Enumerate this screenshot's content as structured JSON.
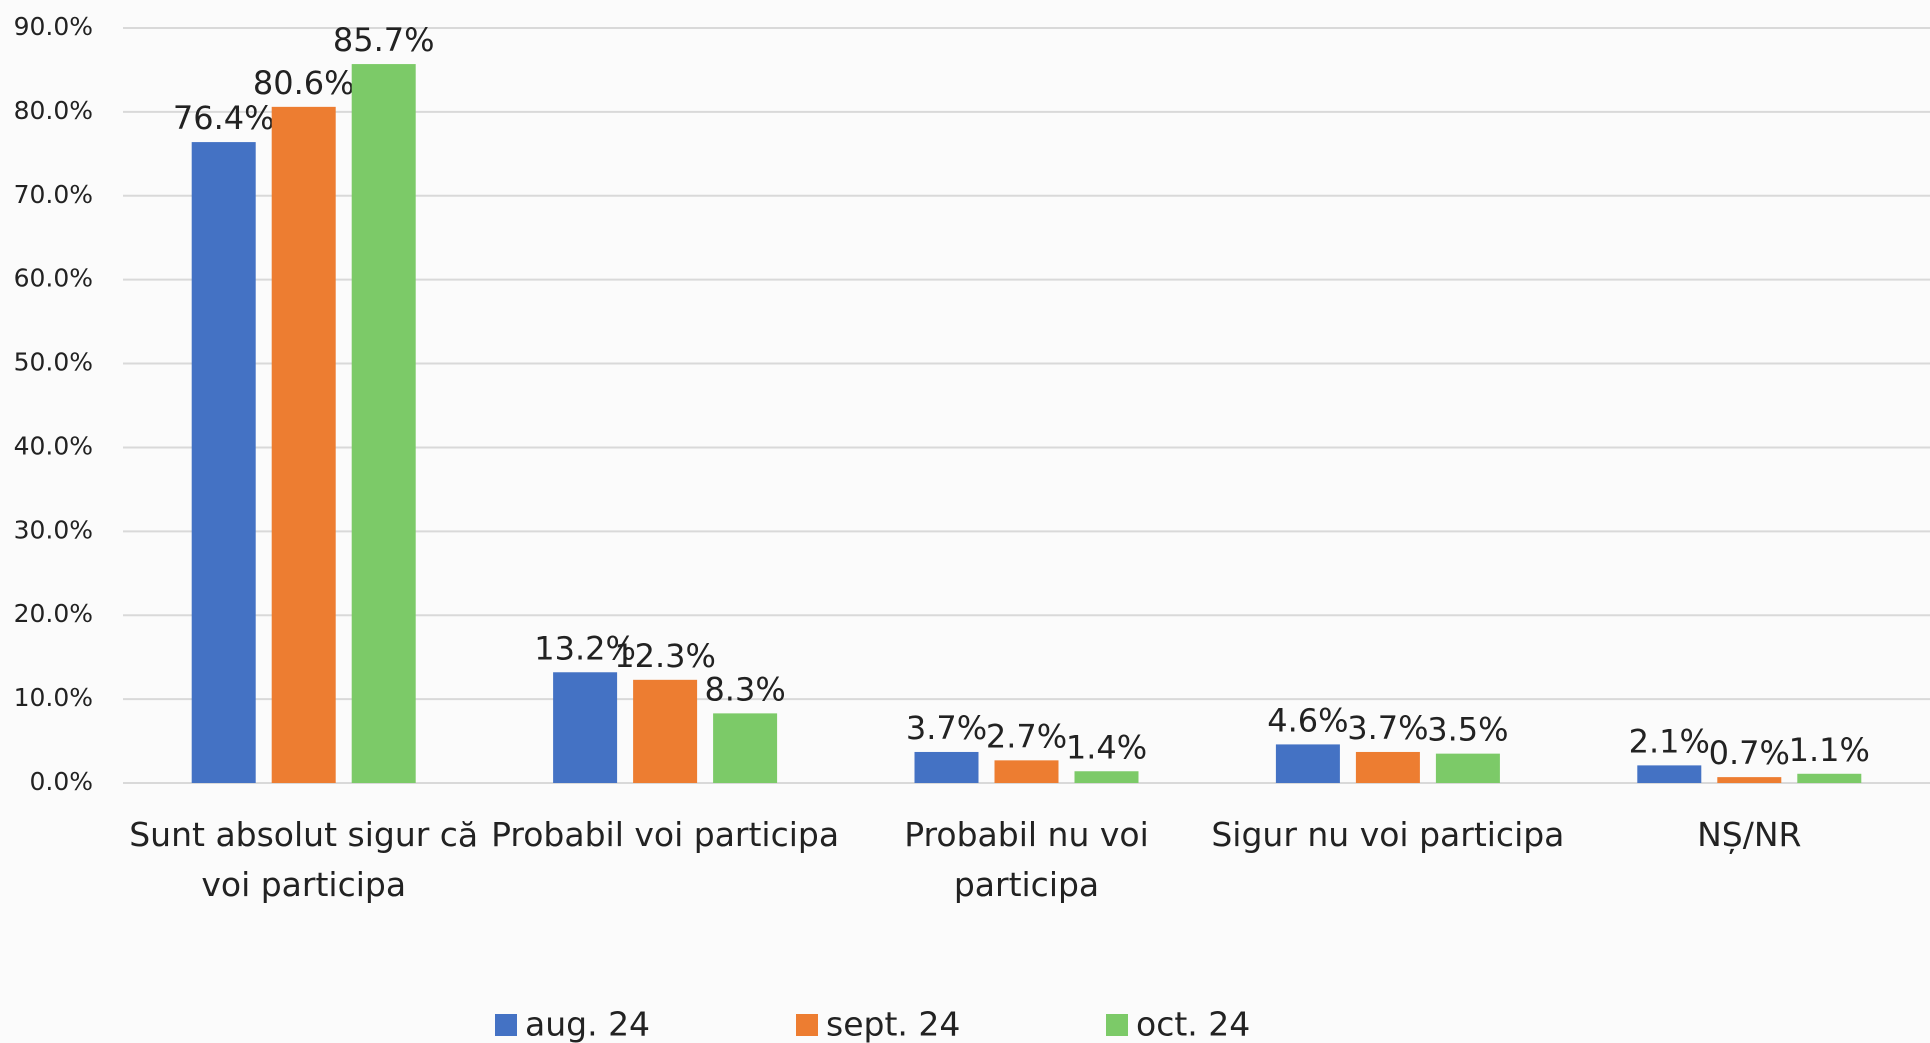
{
  "chart_data": {
    "type": "bar",
    "categories": [
      "Sunt absolut sigur că voi participa",
      "Probabil voi participa",
      "Probabil nu voi participa",
      "Sigur nu voi participa",
      "NȘ/NR"
    ],
    "series": [
      {
        "name": "aug. 24",
        "color": "#4472c4",
        "values": [
          76.4,
          13.2,
          3.7,
          4.6,
          2.1
        ],
        "value_labels": [
          "76.4%",
          "13.2%",
          "3.7%",
          "4.6%",
          "2.1%"
        ]
      },
      {
        "name": "sept. 24",
        "color": "#ed7d31",
        "values": [
          80.6,
          12.3,
          2.7,
          3.7,
          0.7
        ],
        "value_labels": [
          "80.6%",
          "12.3%",
          "2.7%",
          "3.7%",
          "0.7%"
        ]
      },
      {
        "name": "oct. 24",
        "color": "#7cca68",
        "values": [
          85.7,
          8.3,
          1.4,
          3.5,
          1.1
        ],
        "value_labels": [
          "85.7%",
          "8.3%",
          "1.4%",
          "3.5%",
          "1.1%"
        ]
      }
    ],
    "ylim": [
      0,
      90
    ],
    "yticks": [
      {
        "value": 0,
        "label": "0.0%"
      },
      {
        "value": 10,
        "label": "10.0%"
      },
      {
        "value": 20,
        "label": "20.0%"
      },
      {
        "value": 30,
        "label": "30.0%"
      },
      {
        "value": 40,
        "label": "40.0%"
      },
      {
        "value": 50,
        "label": "50.0%"
      },
      {
        "value": 60,
        "label": "60.0%"
      },
      {
        "value": 70,
        "label": "70.0%"
      },
      {
        "value": 80,
        "label": "80.0%"
      },
      {
        "value": 90,
        "label": "90.0%"
      }
    ],
    "grid": true,
    "legend": "bottom"
  }
}
